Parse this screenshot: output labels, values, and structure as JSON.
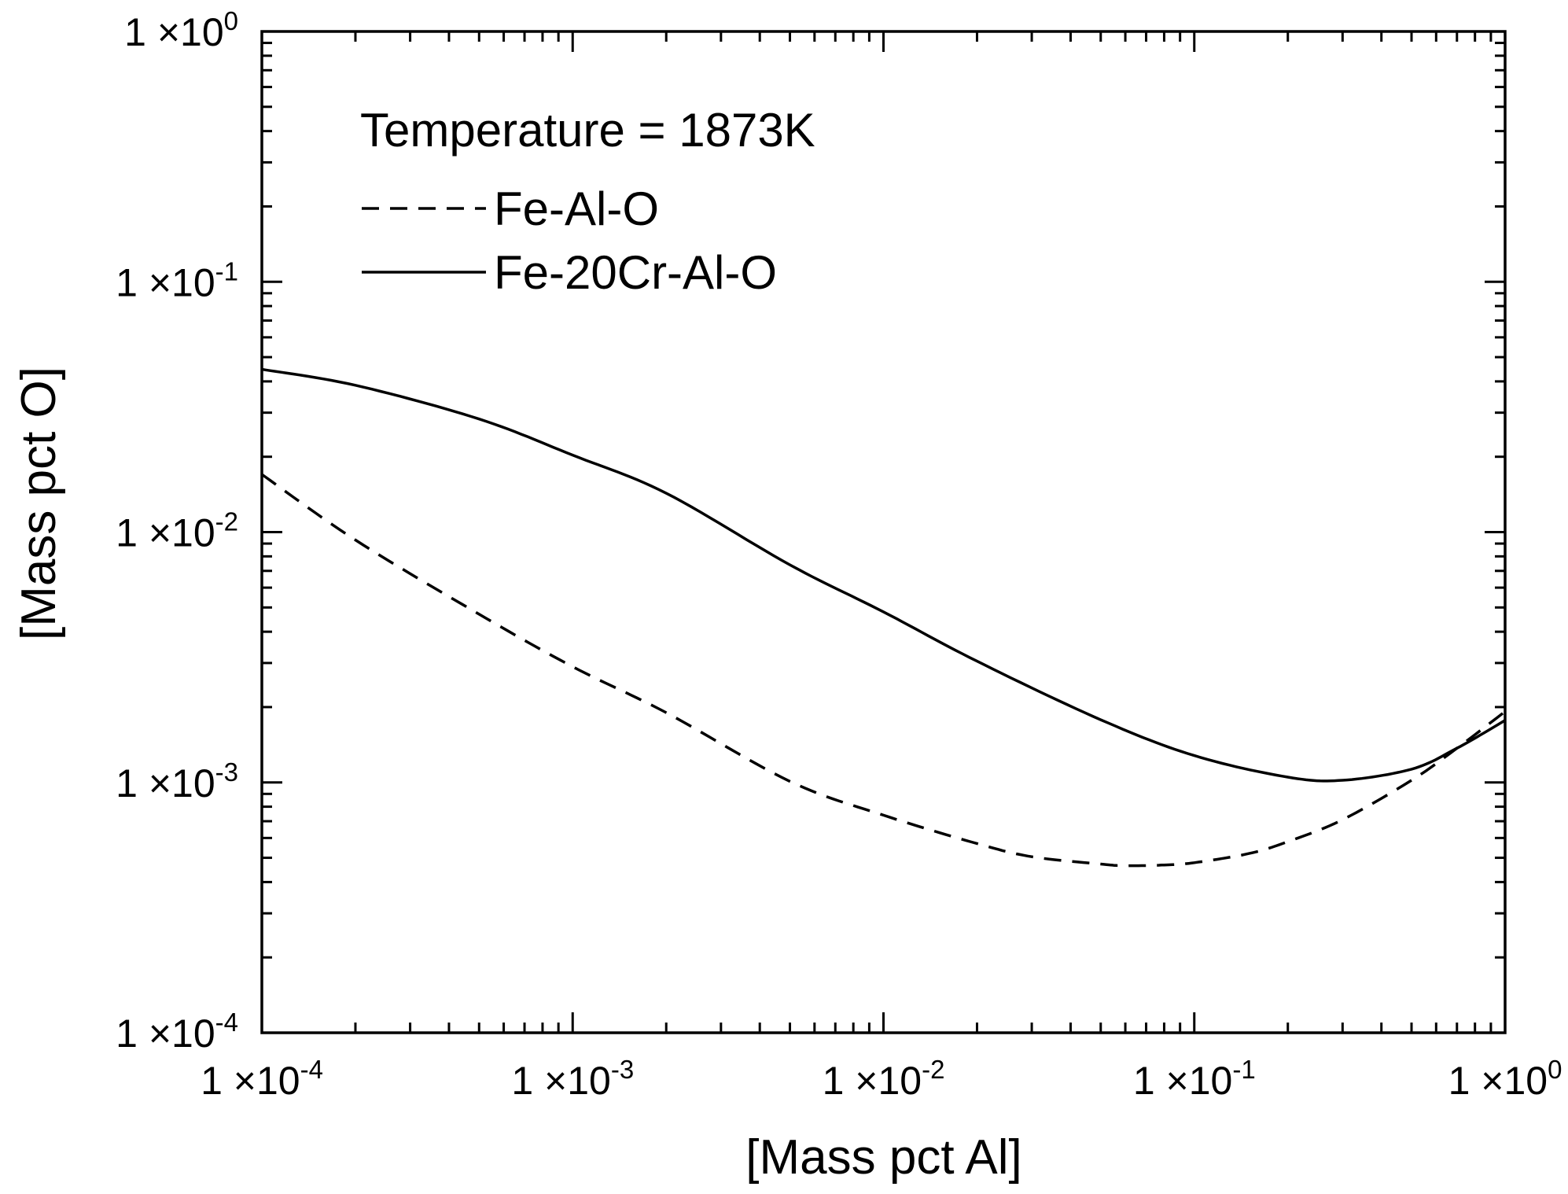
{
  "chart_data": {
    "type": "line",
    "title": "",
    "annotation": "Temperature = 1873K",
    "xlabel": "[Mass pct Al]",
    "ylabel": "[Mass pct O]",
    "xscale": "log",
    "yscale": "log",
    "xlim": [
      0.0001,
      1
    ],
    "ylim": [
      0.0001,
      1
    ],
    "legend_position": "top-left",
    "x_ticks": [
      {
        "value": 0.0001,
        "mantissa": "1 ×10",
        "exponent": "-4"
      },
      {
        "value": 0.001,
        "mantissa": "1 ×10",
        "exponent": "-3"
      },
      {
        "value": 0.01,
        "mantissa": "1 ×10",
        "exponent": "-2"
      },
      {
        "value": 0.1,
        "mantissa": "1 ×10",
        "exponent": "-1"
      },
      {
        "value": 1,
        "mantissa": "1 ×10",
        "exponent": "0"
      }
    ],
    "y_ticks": [
      {
        "value": 0.0001,
        "mantissa": "1 ×10",
        "exponent": "-4"
      },
      {
        "value": 0.001,
        "mantissa": "1 ×10",
        "exponent": "-3"
      },
      {
        "value": 0.01,
        "mantissa": "1 ×10",
        "exponent": "-2"
      },
      {
        "value": 0.1,
        "mantissa": "1 ×10",
        "exponent": "-1"
      },
      {
        "value": 1,
        "mantissa": "1 ×10",
        "exponent": "0"
      }
    ],
    "series": [
      {
        "name": "Fe-Al-O",
        "style": "dashed",
        "color": "#000000",
        "points": [
          [
            0.0001,
            0.017
          ],
          [
            0.0002,
            0.0093
          ],
          [
            0.0005,
            0.0047
          ],
          [
            0.001,
            0.0029
          ],
          [
            0.002,
            0.0019
          ],
          [
            0.005,
            0.00101
          ],
          [
            0.01,
            0.00074
          ],
          [
            0.02,
            0.00057
          ],
          [
            0.03,
            0.000505
          ],
          [
            0.05,
            0.000472
          ],
          [
            0.06,
            0.000465
          ],
          [
            0.08,
            0.000468
          ],
          [
            0.1,
            0.000478
          ],
          [
            0.15,
            0.00052
          ],
          [
            0.2,
            0.00058
          ],
          [
            0.3,
            0.00071
          ],
          [
            0.5,
            0.00102
          ],
          [
            0.7,
            0.00137
          ],
          [
            1.0,
            0.00192
          ]
        ]
      },
      {
        "name": "Fe-20Cr-Al-O",
        "style": "solid",
        "color": "#000000",
        "points": [
          [
            0.0001,
            0.0447
          ],
          [
            0.0002,
            0.0386
          ],
          [
            0.0005,
            0.0283
          ],
          [
            0.001,
            0.0203
          ],
          [
            0.002,
            0.0143
          ],
          [
            0.005,
            0.0074
          ],
          [
            0.01,
            0.0048
          ],
          [
            0.02,
            0.00305
          ],
          [
            0.05,
            0.00178
          ],
          [
            0.1,
            0.00128
          ],
          [
            0.2,
            0.00105
          ],
          [
            0.3,
            0.00102
          ],
          [
            0.5,
            0.00113
          ],
          [
            0.7,
            0.00137
          ],
          [
            1.0,
            0.00177
          ]
        ]
      }
    ]
  }
}
